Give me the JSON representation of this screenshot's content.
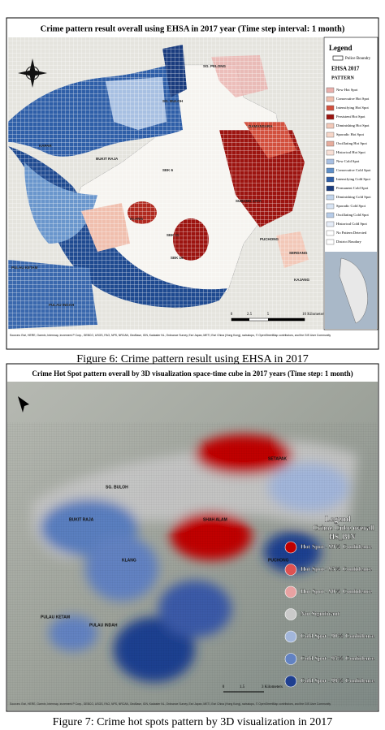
{
  "figure6": {
    "title": "Crime pattern result overall using EHSA in 2017 year (Time step interval: 1 month)",
    "legend": {
      "title": "Legend",
      "boundary": "Police Boundry",
      "heading": "EHSA 2017",
      "subheading": "PATTERN",
      "items": [
        {
          "label": "New Hot Spot",
          "color": "#eab0ac"
        },
        {
          "label": "Consecutive Hot Spot",
          "color": "#f0bfae"
        },
        {
          "label": "Intensifying Hot Spot",
          "color": "#d2503e"
        },
        {
          "label": "Persistent Hot Spot",
          "color": "#9c1410"
        },
        {
          "label": "Diminishing Hot Spot",
          "color": "#f2c8b8"
        },
        {
          "label": "Sporadic Hot Spot",
          "color": "#f6d6c8"
        },
        {
          "label": "Oscillating Hot Spot",
          "color": "#e6ac9c"
        },
        {
          "label": "Historical Hot Spot",
          "color": "#f8e0d6"
        },
        {
          "label": "New Cold Spot",
          "color": "#a8c0e2"
        },
        {
          "label": "Consecutive Cold Spot",
          "color": "#5f8fc8"
        },
        {
          "label": "Intensifying Cold Spot",
          "color": "#2f5fa8"
        },
        {
          "label": "Permanent Cold Spot",
          "color": "#1a3c7e"
        },
        {
          "label": "Diminishing Cold Spot",
          "color": "#c2d5ec"
        },
        {
          "label": "Sporadic Cold Spot",
          "color": "#d8e4f4"
        },
        {
          "label": "Oscillating Cold Spot",
          "color": "#b6cbe8"
        },
        {
          "label": "Historical Cold Spot",
          "color": "#e6edf8"
        },
        {
          "label": "No Pattern Detected",
          "color": "#ffffff"
        },
        {
          "label": "District Boudary",
          "color": "#ffffff"
        }
      ]
    },
    "places": [
      "KAPAR",
      "SG. PELONG",
      "SG. BULOH",
      "DAMANSARA",
      "BUKIT RAJA",
      "SEK 6",
      "SEK 11",
      "SEK 19",
      "KLANG",
      "PUCHONG",
      "SUBANG JAYA",
      "PULAU KETAM",
      "PULAU INDAH",
      "SERDANG",
      "KAJANG"
    ],
    "scale": [
      "0",
      "2.5",
      "5",
      "10 Kilometers"
    ],
    "attribution": "Sources: Esri, HERE, Garmin, Intermap, increment P Corp., GEBCO, USGS, FAO, NPS, NRCAN, GeoBase, IGN, Kadaster NL, Ordnance Survey, Esri Japan, METI, Esri China (Hong Kong), swisstopo, © OpenStreetMap contributors, and the GIS User Community",
    "caption": "Figure 6: Crime pattern result using EHSA in 2017"
  },
  "figure7": {
    "title": "Crime Hot Spot pattern overall by 3D visualization space-time cube in 2017 years (Time step: 1 month)",
    "legend": {
      "title": "Legend",
      "heading": "Crime Cube overall",
      "subheading": "HS_BIN",
      "items": [
        {
          "label": "Hot Spot - 99% Confidence",
          "color": "#c00000"
        },
        {
          "label": "Hot Spot - 95% Confidence",
          "color": "#de5252"
        },
        {
          "label": "Hot Spot - 90% Confidence",
          "color": "#e8a2a2"
        },
        {
          "label": "Not Significant",
          "color": "#cacaca"
        },
        {
          "label": "Cold Spot - 90% Confidence",
          "color": "#a2b6da"
        },
        {
          "label": "Cold Spot - 95% Confidence",
          "color": "#6282c2"
        },
        {
          "label": "Cold Spot - 99% Confidence",
          "color": "#1f3f90"
        }
      ]
    },
    "places": [
      "SG. BULOH",
      "SETAPAK",
      "KLANG",
      "SHAH ALAM",
      "PULAU KETAM",
      "PULAU INDAH",
      "BUKIT RAJA",
      "PUCHONG"
    ],
    "scale": [
      "0",
      "1.5",
      "3 Kilometers"
    ],
    "attribution": "Sources: Esri, HERE, Garmin, Intermap, increment P Corp., GEBCO, USGS, FAO, NPS, NRCAN, GeoBase, IGN, Kadaster NL, Ordnance Survey, Esri Japan, METI, Esri China (Hong Kong), swisstopo, © OpenStreetMap contributors, and the GIS User Community",
    "caption": "Figure 7: Crime hot spots pattern by 3D visualization in 2017"
  }
}
